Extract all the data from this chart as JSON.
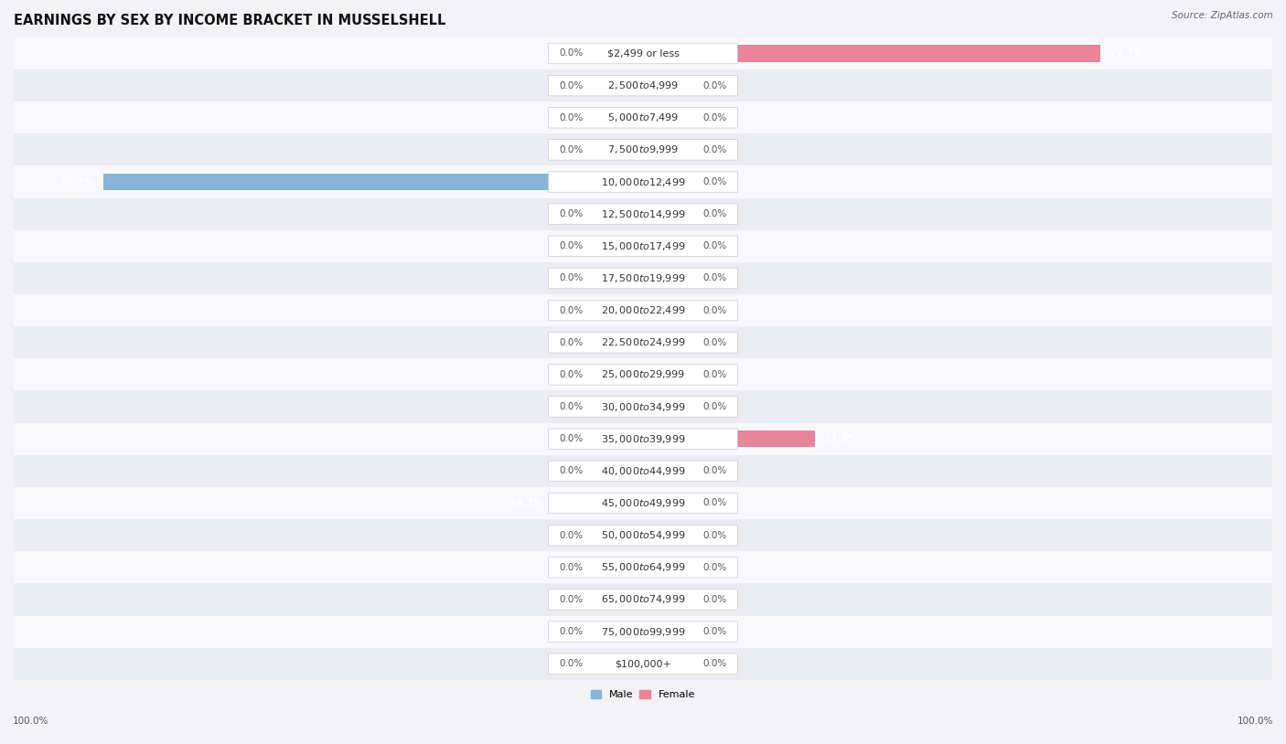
{
  "title": "EARNINGS BY SEX BY INCOME BRACKET IN MUSSELSHELL",
  "source": "Source: ZipAtlas.com",
  "categories": [
    "$2,499 or less",
    "$2,500 to $4,999",
    "$5,000 to $7,499",
    "$7,500 to $9,999",
    "$10,000 to $12,499",
    "$12,500 to $14,999",
    "$15,000 to $17,499",
    "$17,500 to $19,999",
    "$20,000 to $22,499",
    "$22,500 to $24,999",
    "$25,000 to $29,999",
    "$30,000 to $34,999",
    "$35,000 to $39,999",
    "$40,000 to $44,999",
    "$45,000 to $49,999",
    "$50,000 to $54,999",
    "$55,000 to $64,999",
    "$65,000 to $74,999",
    "$75,000 to $99,999",
    "$100,000+"
  ],
  "male_values": [
    0.0,
    0.0,
    0.0,
    0.0,
    85.7,
    0.0,
    0.0,
    0.0,
    0.0,
    0.0,
    0.0,
    0.0,
    0.0,
    0.0,
    14.3,
    0.0,
    0.0,
    0.0,
    0.0,
    0.0
  ],
  "female_values": [
    72.7,
    0.0,
    0.0,
    0.0,
    0.0,
    0.0,
    0.0,
    0.0,
    0.0,
    0.0,
    0.0,
    0.0,
    27.3,
    0.0,
    0.0,
    0.0,
    0.0,
    0.0,
    0.0,
    0.0
  ],
  "male_color": "#8ab4d8",
  "female_color": "#e8859a",
  "male_color_stub": "#aac8e4",
  "female_color_stub": "#f0aaba",
  "male_label": "Male",
  "female_label": "Female",
  "xlim": 100,
  "stub_val": 8,
  "bar_height": 0.52,
  "bg_color": "#f2f2f7",
  "row_color_even": "#f8f8fc",
  "row_color_odd": "#ececf3",
  "title_fontsize": 10.5,
  "label_fontsize": 8.0,
  "source_fontsize": 7.5,
  "cat_fontsize": 8.0,
  "val_fontsize": 7.5
}
